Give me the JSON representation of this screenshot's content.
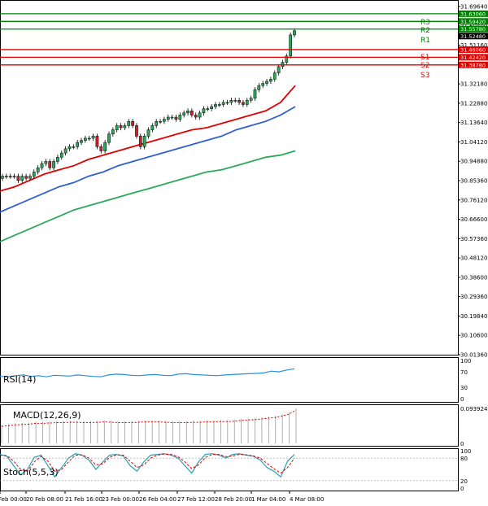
{
  "chart_data": {
    "type": "candlestick",
    "price_axis": {
      "range": [
        30.0136,
        31.6957
      ],
      "ticks": [
        "31.69640",
        "31.60400",
        "31.51160",
        "31.41920",
        "31.32180",
        "31.22880",
        "31.13640",
        "31.04120",
        "30.94880",
        "30.85360",
        "30.76120",
        "30.66600",
        "30.57360",
        "30.48120",
        "30.38600",
        "30.29360",
        "30.19840",
        "30.10600",
        "30.01360"
      ]
    },
    "time_axis": {
      "labels": [
        "Feb 00:00",
        "20 Feb 08:00",
        "21 Feb 16:00",
        "23 Feb 00:00",
        "26 Feb 04:00",
        "27 Feb 12:00",
        "28 Feb 20:00",
        "1 Mar 04:00",
        "4 Mar 08:00"
      ]
    },
    "levels": [
      {
        "name": "R3",
        "value": 31.6306,
        "label": "31.63060",
        "color": "#008000"
      },
      {
        "name": "R2",
        "value": 31.5942,
        "label": "31.59420",
        "color": "#008000"
      },
      {
        "name": "R1",
        "value": 31.5578,
        "label": "31.55780",
        "color": "#008000"
      },
      {
        "name": "S1",
        "value": 31.4606,
        "label": "31.46060",
        "color": "#e00000"
      },
      {
        "name": "S2",
        "value": 31.4242,
        "label": "31.42420",
        "color": "#e00000"
      },
      {
        "name": "S3",
        "value": 31.3878,
        "label": "31.38780",
        "color": "#e00000"
      }
    ],
    "current_price": {
      "value": 31.5248,
      "label": "31.52480"
    },
    "candles_close": [
      30.86,
      30.86,
      30.86,
      30.86,
      30.84,
      30.86,
      30.85,
      30.86,
      30.88,
      30.9,
      30.92,
      30.93,
      30.9,
      30.93,
      30.95,
      30.97,
      30.99,
      31.0,
      31.0,
      31.02,
      31.03,
      31.04,
      31.04,
      31.05,
      31.0,
      30.98,
      31.02,
      31.06,
      31.08,
      31.1,
      31.09,
      31.1,
      31.12,
      31.1,
      31.05,
      31.0,
      31.05,
      31.08,
      31.1,
      31.12,
      31.12,
      31.13,
      31.14,
      31.14,
      31.13,
      31.15,
      31.16,
      31.17,
      31.15,
      31.14,
      31.16,
      31.18,
      31.18,
      31.19,
      31.2,
      31.2,
      31.21,
      31.21,
      31.22,
      31.22,
      31.21,
      31.2,
      31.22,
      31.23,
      31.27,
      31.29,
      31.3,
      31.31,
      31.32,
      31.35,
      31.38,
      31.4,
      31.43,
      31.53,
      31.55
    ],
    "moving_averages": [
      {
        "color": "#e00000",
        "values": [
          30.79,
          30.81,
          30.84,
          30.87,
          30.89,
          30.91,
          30.94,
          30.96,
          30.98,
          31.0,
          31.02,
          31.04,
          31.06,
          31.08,
          31.09,
          31.11,
          31.13,
          31.15,
          31.17,
          31.21,
          31.29
        ]
      },
      {
        "color": "#2f5fd0",
        "values": [
          30.69,
          30.72,
          30.75,
          30.78,
          30.81,
          30.83,
          30.86,
          30.88,
          30.91,
          30.93,
          30.95,
          30.97,
          30.99,
          31.01,
          31.03,
          31.05,
          31.08,
          31.1,
          31.12,
          31.15,
          31.19
        ]
      },
      {
        "color": "#2ca85a",
        "values": [
          30.55,
          30.58,
          30.61,
          30.64,
          30.67,
          30.7,
          30.72,
          30.74,
          30.76,
          30.78,
          30.8,
          30.82,
          30.84,
          30.86,
          30.88,
          30.89,
          30.91,
          30.93,
          30.95,
          30.96,
          30.98
        ]
      }
    ],
    "rsi": {
      "title": "RSI(14)",
      "ticks": [
        "100",
        "70",
        "30",
        "0"
      ],
      "values": [
        58,
        57,
        60,
        62,
        58,
        60,
        57,
        61,
        60,
        59,
        62,
        60,
        58,
        57,
        62,
        64,
        63,
        61,
        60,
        62,
        63,
        61,
        60,
        64,
        65,
        63,
        62,
        61,
        60,
        62,
        63,
        64,
        65,
        66,
        67,
        72,
        70,
        75,
        78
      ]
    },
    "macd": {
      "title": "MACD(12,26,9)",
      "ticks": [
        "0.093924",
        "0"
      ],
      "hist": [
        0.05,
        0.052,
        0.054,
        0.055,
        0.056,
        0.058,
        0.058,
        0.059,
        0.06,
        0.06,
        0.061,
        0.061,
        0.06,
        0.06,
        0.061,
        0.062,
        0.061,
        0.06,
        0.06,
        0.06,
        0.061,
        0.062,
        0.062,
        0.062,
        0.061,
        0.06,
        0.06,
        0.06,
        0.061,
        0.061,
        0.062,
        0.062,
        0.063,
        0.063,
        0.064,
        0.066,
        0.067,
        0.068,
        0.07,
        0.072,
        0.074,
        0.078,
        0.083,
        0.094
      ]
    },
    "stoch": {
      "title": "Stoch(5,5,3)",
      "ticks": [
        "100",
        "80",
        "20",
        "0"
      ],
      "k": [
        90,
        85,
        60,
        35,
        50,
        82,
        88,
        60,
        30,
        55,
        80,
        92,
        88,
        75,
        50,
        70,
        88,
        90,
        86,
        60,
        45,
        70,
        88,
        90,
        92,
        88,
        80,
        60,
        40,
        70,
        90,
        92,
        88,
        80,
        90,
        92,
        88,
        85,
        75,
        55,
        45,
        30,
        72,
        90
      ],
      "d": [
        88,
        87,
        72,
        50,
        45,
        70,
        85,
        72,
        45,
        50,
        70,
        88,
        89,
        80,
        62,
        65,
        82,
        89,
        88,
        72,
        55,
        62,
        80,
        88,
        91,
        90,
        84,
        70,
        52,
        62,
        82,
        90,
        90,
        84,
        86,
        90,
        89,
        86,
        80,
        66,
        52,
        40,
        55,
        80
      ]
    }
  }
}
